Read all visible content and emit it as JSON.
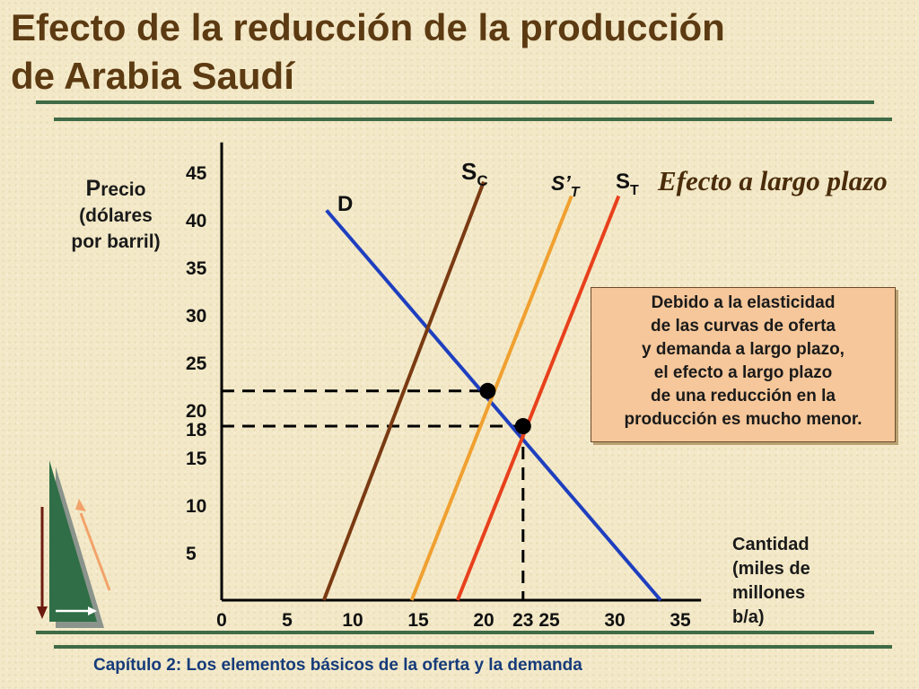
{
  "slide": {
    "title": "Efecto de la reducción de la producción\nde Arabia Saudí",
    "footer": "Capítulo 2: Los elementos básicos de la oferta y la demanda",
    "colors": {
      "title": "#5c3a12",
      "rule": "#3f6b46",
      "footer": "#163b7a",
      "note_bg": "#f6c79a"
    }
  },
  "chart_data": {
    "type": "line",
    "title": "",
    "ylabel_first": "P",
    "ylabel_rest": "recio",
    "ylabel_line2": "(dólares",
    "ylabel_line3": "por barril)",
    "xlabel": "Cantidad\n(miles de\nmillones\nb/a)",
    "xlim": [
      0,
      37
    ],
    "ylim": [
      0,
      47
    ],
    "x_ticks": [
      "0",
      "5",
      "10",
      "15",
      "20",
      "23",
      "25",
      "30",
      "35"
    ],
    "x_tick_values": [
      0,
      5,
      10,
      15,
      20,
      23,
      25,
      30,
      35
    ],
    "y_ticks": [
      "45",
      "40",
      "35",
      "30",
      "25",
      "20",
      "18",
      "15",
      "10",
      "5"
    ],
    "y_tick_values": [
      45,
      40,
      35,
      30,
      25,
      20,
      18,
      15,
      10,
      5
    ],
    "series": [
      {
        "name": "D",
        "color": "#1f3fbf",
        "points": [
          [
            8,
            41
          ],
          [
            33.5,
            0
          ]
        ]
      },
      {
        "name": "S_C",
        "sub": "C",
        "color": "#7a3a12",
        "points": [
          [
            7.8,
            0
          ],
          [
            20,
            44
          ]
        ]
      },
      {
        "name": "S'_T",
        "sub": "T",
        "color": "#f0a030",
        "points": [
          [
            14.5,
            0
          ],
          [
            26.7,
            42.5
          ]
        ]
      },
      {
        "name": "S_T",
        "sub": "T",
        "color": "#e8401c",
        "points": [
          [
            18,
            0
          ],
          [
            30.3,
            42.5
          ]
        ]
      }
    ],
    "labels": {
      "D": "D",
      "SC": "S",
      "SC_sub": "C",
      "STp": "S’",
      "STp_sub": "T",
      "ST": "S",
      "ST_sub": "T"
    },
    "equilibria": [
      {
        "x": 20.3,
        "y": 22,
        "type": "short-run"
      },
      {
        "x": 23,
        "y": 18.3,
        "type": "long-run"
      }
    ],
    "annotation": "Efecto a largo plazo",
    "note": "Debido a la elasticidad\n de las curvas de oferta\ny demanda a largo plazo,\nel efecto a largo plazo\n de una reducción en la\nproducción es mucho menor."
  }
}
